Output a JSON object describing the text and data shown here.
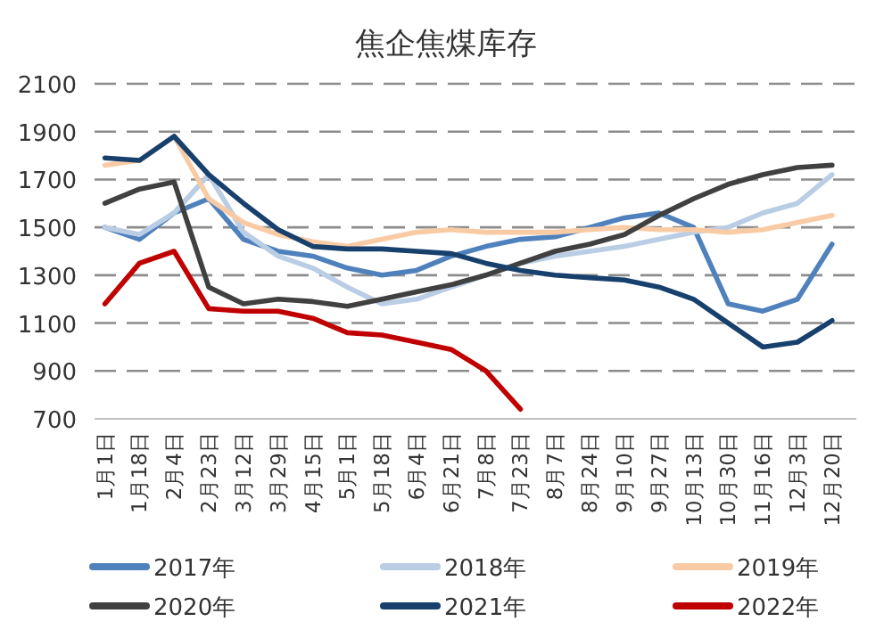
{
  "chart_data": {
    "type": "line",
    "title": "焦企焦煤库存",
    "categories": [
      "1月1日",
      "1月18日",
      "2月4日",
      "2月23日",
      "3月12日",
      "3月29日",
      "4月15日",
      "5月1日",
      "5月18日",
      "6月4日",
      "6月21日",
      "7月8日",
      "7月23日",
      "8月7日",
      "8月24日",
      "9月10日",
      "9月27日",
      "10月13日",
      "10月30日",
      "11月16日",
      "12月3日",
      "12月20日"
    ],
    "series": [
      {
        "name": "2017年",
        "color": "#4f81bd",
        "values": [
          1500,
          1450,
          1560,
          1620,
          1450,
          1400,
          1380,
          1330,
          1300,
          1320,
          1380,
          1420,
          1450,
          1460,
          1500,
          1540,
          1560,
          1500,
          1180,
          1150,
          1200,
          1430
        ]
      },
      {
        "name": "2018年",
        "color": "#b9cde5",
        "values": [
          1500,
          1470,
          1560,
          1720,
          1480,
          1380,
          1330,
          1250,
          1180,
          1200,
          1250,
          1300,
          1350,
          1380,
          1400,
          1420,
          1450,
          1480,
          1500,
          1560,
          1600,
          1720
        ]
      },
      {
        "name": "2019年",
        "color": "#f9cba5",
        "values": [
          1760,
          1780,
          1880,
          1620,
          1520,
          1470,
          1440,
          1420,
          1450,
          1480,
          1490,
          1480,
          1480,
          1480,
          1490,
          1500,
          1490,
          1490,
          1480,
          1490,
          1520,
          1550
        ]
      },
      {
        "name": "2020年",
        "color": "#404040",
        "values": [
          1600,
          1660,
          1690,
          1250,
          1180,
          1200,
          1190,
          1170,
          1200,
          1230,
          1260,
          1300,
          1350,
          1400,
          1430,
          1470,
          1550,
          1620,
          1680,
          1720,
          1750,
          1760
        ]
      },
      {
        "name": "2021年",
        "color": "#17406d",
        "values": [
          1790,
          1780,
          1880,
          1720,
          1600,
          1490,
          1420,
          1410,
          1410,
          1400,
          1390,
          1350,
          1320,
          1300,
          1290,
          1280,
          1250,
          1200,
          1100,
          1000,
          1020,
          1110
        ]
      },
      {
        "name": "2022年",
        "color": "#c00000",
        "values": [
          1180,
          1350,
          1400,
          1160,
          1150,
          1150,
          1120,
          1060,
          1050,
          1020,
          990,
          900,
          740,
          null,
          null,
          null,
          null,
          null,
          null,
          null,
          null,
          null
        ]
      }
    ],
    "ylim": [
      700,
      2100
    ],
    "yticks": [
      700,
      900,
      1100,
      1300,
      1500,
      1700,
      1900,
      2100
    ],
    "grid": "y",
    "legend": "bottom",
    "line_style": "solid",
    "marker": "none"
  }
}
